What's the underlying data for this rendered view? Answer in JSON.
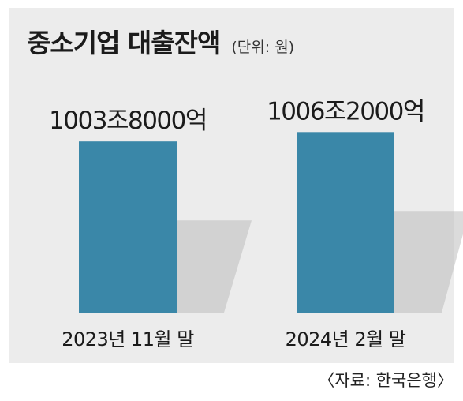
{
  "title": "중소기업 대출잔액",
  "unit": "(단위: 원)",
  "source": "〈자료: 한국은행〉",
  "colors": {
    "bar": "#3a87a8",
    "panel": "#ececec",
    "shadow": "#bdbdbd",
    "text": "#1b1b1b"
  },
  "chart_data": {
    "type": "bar",
    "title": "중소기업 대출잔액",
    "unit": "원",
    "categories": [
      "2023년 11월 말",
      "2024년 2월 말"
    ],
    "values": [
      1003.8,
      1006.2
    ],
    "value_unit": "조원",
    "data_labels": [
      "1003조8000억",
      "1006조2000억"
    ],
    "axis_visible": false,
    "grid": false,
    "legend": "none"
  }
}
